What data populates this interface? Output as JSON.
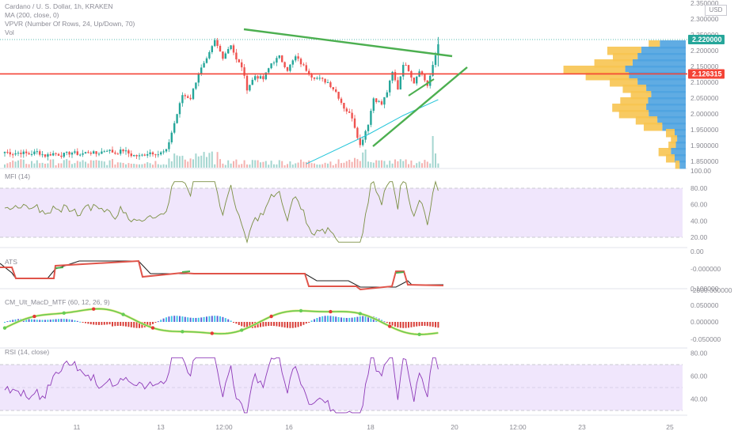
{
  "legend": {
    "symbol": "Cardano / U. S. Dollar, 1h, KRAKEN",
    "ma": "MA (200, close, 0)",
    "vpvr": "VPVR (Number Of Rows, 24, Up/Down, 70)",
    "vol": "Vol"
  },
  "panes": {
    "mfi": "MFI (14)",
    "ats": "ATS",
    "cm": "CM_Ult_MacD_MTF (60, 12, 26, 9)",
    "rsi": "RSI (14, close)"
  },
  "price_axis": {
    "unit": "USD",
    "ticks": [
      "2.350000",
      "2.300000",
      "2.250000",
      "2.200000",
      "2.150000",
      "2.100000",
      "2.050000",
      "2.000000",
      "1.950000",
      "1.900000",
      "1.850000",
      "100.00"
    ],
    "current_price": "2.220000",
    "horizontal_level": "2.126315"
  },
  "mfi_axis": {
    "ticks": [
      "80.00",
      "60.00",
      "40.00",
      "20.00"
    ]
  },
  "ats_axis": {
    "ticks": [
      "0.00",
      "-0.000000",
      "-2000.000000"
    ]
  },
  "cm_axis": {
    "ticks": [
      "0.100000",
      "0.050000",
      "0.000000",
      "-0.050000"
    ]
  },
  "rsi_axis": {
    "ticks": [
      "80.00",
      "60.00",
      "40.00"
    ]
  },
  "time_axis": {
    "ticks": [
      "11",
      "13",
      "12:00",
      "16",
      "18",
      "20",
      "12:00",
      "23",
      "25"
    ]
  },
  "colors": {
    "up": "#26a69a",
    "down": "#ef5350",
    "wedge": "#4caf50",
    "level": "#f44336",
    "ma": "#26c6da",
    "band": "#f0e6fc",
    "vpvr_up": "#f7c451",
    "vpvr_down": "#4fa3e0"
  },
  "chart_data": {
    "type": "candlestick",
    "title": "Cardano / U. S. Dollar, 1h, KRAKEN",
    "ylim": [
      1.83,
      2.36
    ],
    "close_path": [
      [
        0,
        1.88
      ],
      [
        3,
        1.875
      ],
      [
        6,
        1.878
      ],
      [
        9,
        1.873
      ],
      [
        12,
        1.88
      ],
      [
        15,
        1.868
      ],
      [
        18,
        1.875
      ],
      [
        21,
        1.87
      ],
      [
        25,
        1.878
      ],
      [
        28,
        1.872
      ],
      [
        31,
        1.88
      ],
      [
        34,
        1.874
      ],
      [
        38,
        1.887
      ],
      [
        41,
        1.876
      ],
      [
        44,
        1.885
      ],
      [
        47,
        1.87
      ],
      [
        50,
        1.866
      ],
      [
        54,
        1.879
      ],
      [
        57,
        1.873
      ],
      [
        60,
        1.883
      ],
      [
        64,
        2.0
      ],
      [
        66,
        2.06
      ],
      [
        69,
        2.05
      ],
      [
        72,
        2.13
      ],
      [
        75,
        2.17
      ],
      [
        78,
        2.23
      ],
      [
        81,
        2.18
      ],
      [
        84,
        2.22
      ],
      [
        86,
        2.17
      ],
      [
        88,
        2.15
      ],
      [
        90,
        2.08
      ],
      [
        93,
        2.12
      ],
      [
        96,
        2.11
      ],
      [
        99,
        2.16
      ],
      [
        102,
        2.18
      ],
      [
        105,
        2.14
      ],
      [
        108,
        2.18
      ],
      [
        111,
        2.15
      ],
      [
        114,
        2.12
      ],
      [
        117,
        2.11
      ],
      [
        120,
        2.1
      ],
      [
        123,
        2.07
      ],
      [
        126,
        2.02
      ],
      [
        129,
        1.99
      ],
      [
        132,
        1.9
      ],
      [
        135,
        1.97
      ],
      [
        137,
        2.05
      ],
      [
        140,
        2.03
      ],
      [
        142,
        2.07
      ],
      [
        144,
        2.13
      ],
      [
        146,
        2.08
      ],
      [
        148,
        2.16
      ],
      [
        150,
        2.14
      ],
      [
        152,
        2.1
      ],
      [
        154,
        2.14
      ],
      [
        157,
        2.09
      ],
      [
        159,
        2.15
      ],
      [
        161,
        2.22
      ]
    ],
    "levels": {
      "support_resistance": 2.126315,
      "current": 2.22
    },
    "vpvr": [
      {
        "price": 2.22,
        "up": 0.18,
        "down": 0.42
      },
      {
        "price": 2.2,
        "up": 0.55,
        "down": 0.72
      },
      {
        "price": 2.18,
        "up": 0.4,
        "down": 0.78
      },
      {
        "price": 2.16,
        "up": 0.62,
        "down": 0.86
      },
      {
        "price": 2.14,
        "up": 1.0,
        "down": 0.98
      },
      {
        "price": 2.12,
        "up": 0.7,
        "down": 0.92
      },
      {
        "price": 2.1,
        "up": 0.45,
        "down": 0.78
      },
      {
        "price": 2.08,
        "up": 0.38,
        "down": 0.64
      },
      {
        "price": 2.06,
        "up": 0.33,
        "down": 0.56
      },
      {
        "price": 2.04,
        "up": 0.45,
        "down": 0.61
      },
      {
        "price": 2.02,
        "up": 0.55,
        "down": 0.64
      },
      {
        "price": 2.0,
        "up": 0.48,
        "down": 0.6
      },
      {
        "price": 1.98,
        "up": 0.35,
        "down": 0.46
      },
      {
        "price": 1.96,
        "up": 0.3,
        "down": 0.38
      },
      {
        "price": 1.94,
        "up": 0.14,
        "down": 0.18
      },
      {
        "price": 1.92,
        "up": 0.1,
        "down": 0.14
      },
      {
        "price": 1.9,
        "up": 0.12,
        "down": 0.16
      },
      {
        "price": 1.88,
        "up": 0.2,
        "down": 0.24
      },
      {
        "price": 1.86,
        "up": 0.14,
        "down": 0.18
      },
      {
        "price": 1.84,
        "up": 0.07,
        "down": 0.1
      }
    ],
    "mfi_ylim": [
      10,
      90
    ],
    "rsi_ylim": [
      25,
      75
    ]
  }
}
